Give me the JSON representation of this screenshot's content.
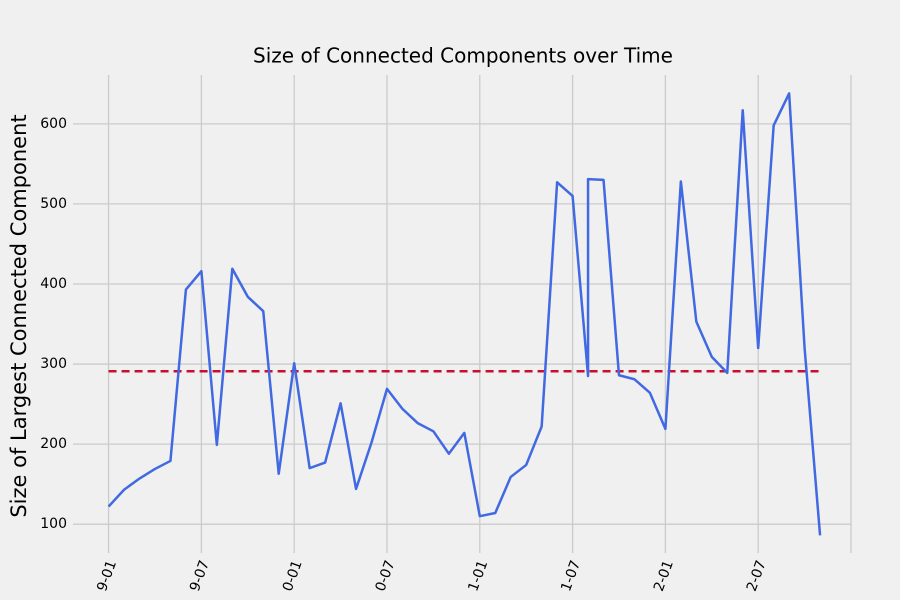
{
  "chart_data": {
    "type": "line",
    "title": "Size of Connected Components over Time",
    "y_label": "Size of Largest Connected Component",
    "x": [
      0,
      1,
      2,
      3,
      4,
      5,
      6,
      7,
      8,
      9,
      10,
      11,
      12,
      13,
      14,
      15,
      16,
      17,
      18,
      19,
      20,
      21,
      22,
      23,
      24,
      25,
      26,
      27,
      28,
      29,
      30,
      31,
      31,
      32,
      33,
      34,
      35,
      36,
      37,
      38,
      39,
      40,
      41,
      42,
      43,
      44,
      45,
      46
    ],
    "series": [
      {
        "color": "#4169e1",
        "values": [
          122,
          143,
          157,
          169,
          179,
          393,
          416,
          199,
          419,
          384,
          366,
          163,
          301,
          170,
          177,
          251,
          144,
          202,
          269,
          244,
          226,
          216,
          188,
          214,
          110,
          114,
          159,
          174,
          222,
          527,
          510,
          285,
          531,
          530,
          286,
          281,
          264,
          219,
          528,
          353,
          309,
          289,
          617,
          320,
          598,
          638,
          320,
          86
        ]
      }
    ],
    "reference_line": {
      "value": 291,
      "color": "#c8102e"
    },
    "xlim": [
      -2.3,
      48
    ],
    "xticks": [
      {
        "value": 0,
        "label": "9-01"
      },
      {
        "value": 6,
        "label": "9-07"
      },
      {
        "value": 12,
        "label": "0-01"
      },
      {
        "value": 18,
        "label": "0-07"
      },
      {
        "value": 24,
        "label": "1-01"
      },
      {
        "value": 30,
        "label": "1-07"
      },
      {
        "value": 36,
        "label": "2-01"
      },
      {
        "value": 42,
        "label": "2-07"
      },
      {
        "value": 48,
        "label": ""
      }
    ],
    "ylim": [
      64,
      661
    ],
    "yticks": [
      100,
      200,
      300,
      400,
      500,
      600
    ],
    "grid": true
  }
}
